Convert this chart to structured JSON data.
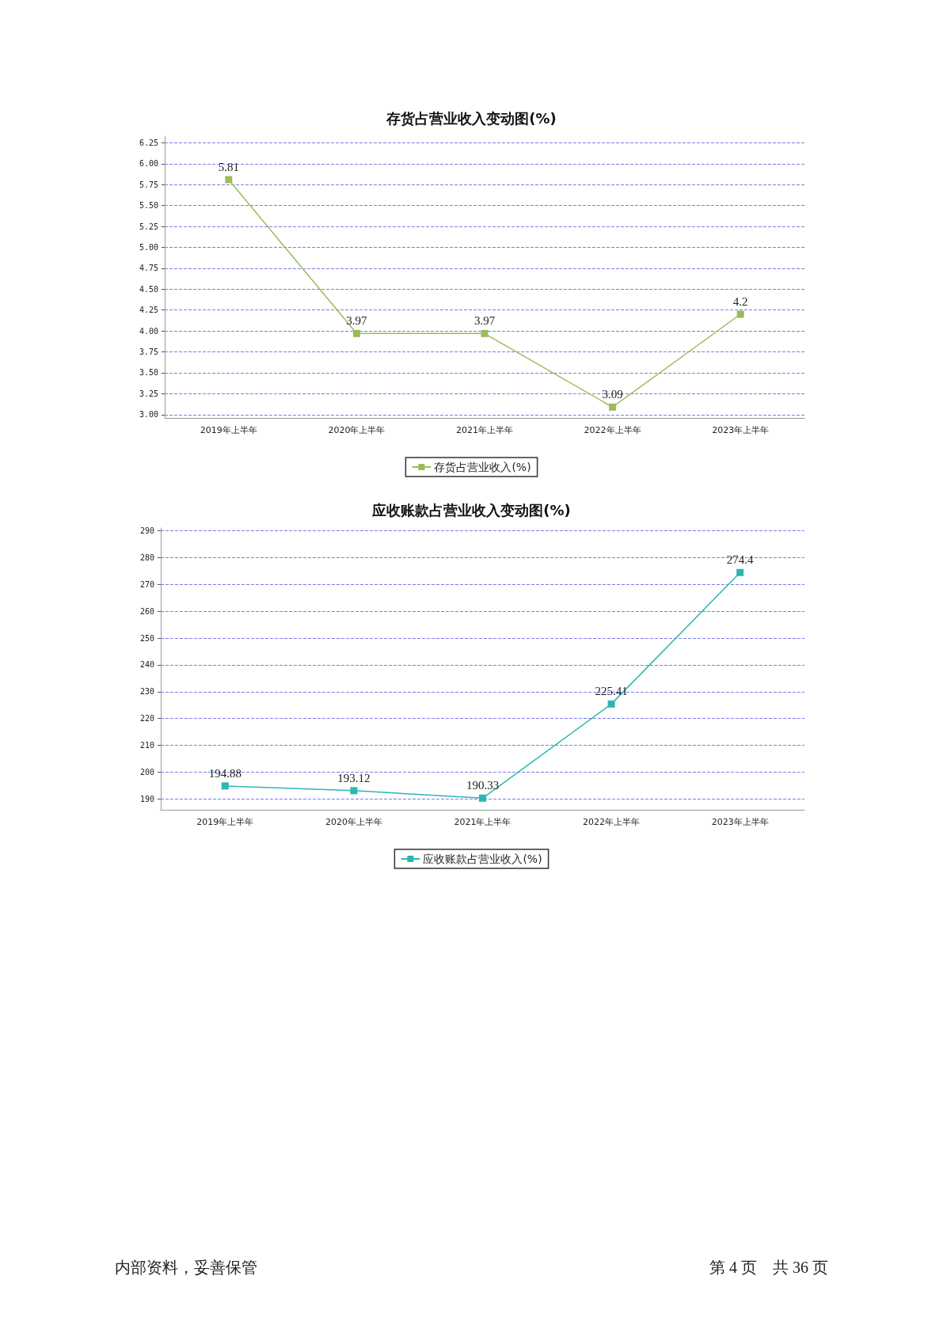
{
  "chart_data": [
    {
      "type": "line",
      "title": "存货占营业收入变动图(%)",
      "categories": [
        "2019年上半年",
        "2020年上半年",
        "2021年上半年",
        "2022年上半年",
        "2023年上半年"
      ],
      "series": [
        {
          "name": "存货占营业收入(%)",
          "color": "#9bbb59",
          "values": [
            5.81,
            3.97,
            3.97,
            3.09,
            4.2
          ]
        }
      ],
      "ylim": [
        2.96,
        6.33
      ],
      "yticks": [
        {
          "value": 3,
          "label": "3.00"
        },
        3.25,
        {
          "value": 3.5,
          "label": "3.50"
        },
        3.75,
        {
          "value": 4,
          "label": "4.00"
        },
        4.25,
        {
          "value": 4.5,
          "label": "4.50"
        },
        4.75,
        {
          "value": 5,
          "label": "5.00"
        },
        5.25,
        {
          "value": 5.5,
          "label": "5.50"
        },
        5.75,
        {
          "value": 6,
          "label": "6.00"
        },
        6.25
      ],
      "grid": "y",
      "legend": "bottom",
      "marker": "square",
      "line_style": "solid",
      "data_labels": true
    },
    {
      "type": "line",
      "title": "应收账款占营业收入变动图(%)",
      "categories": [
        "2019年上半年",
        "2020年上半年",
        "2021年上半年",
        "2022年上半年",
        "2023年上半年"
      ],
      "series": [
        {
          "name": "应收账款占营业收入(%)",
          "color": "#2db6b0",
          "values": [
            194.88,
            193.12,
            190.33,
            225.41,
            274.4
          ]
        }
      ],
      "ylim": [
        186,
        291
      ],
      "yticks": [
        190,
        200,
        210,
        220,
        230,
        240,
        250,
        260,
        270,
        280,
        290
      ],
      "grid": "y",
      "legend": "bottom",
      "marker": "square",
      "line_style": "solid",
      "data_labels": true,
      "annotations": [
        "内部资料，妥善保管",
        "第 4 页　共 36 页"
      ]
    }
  ]
}
